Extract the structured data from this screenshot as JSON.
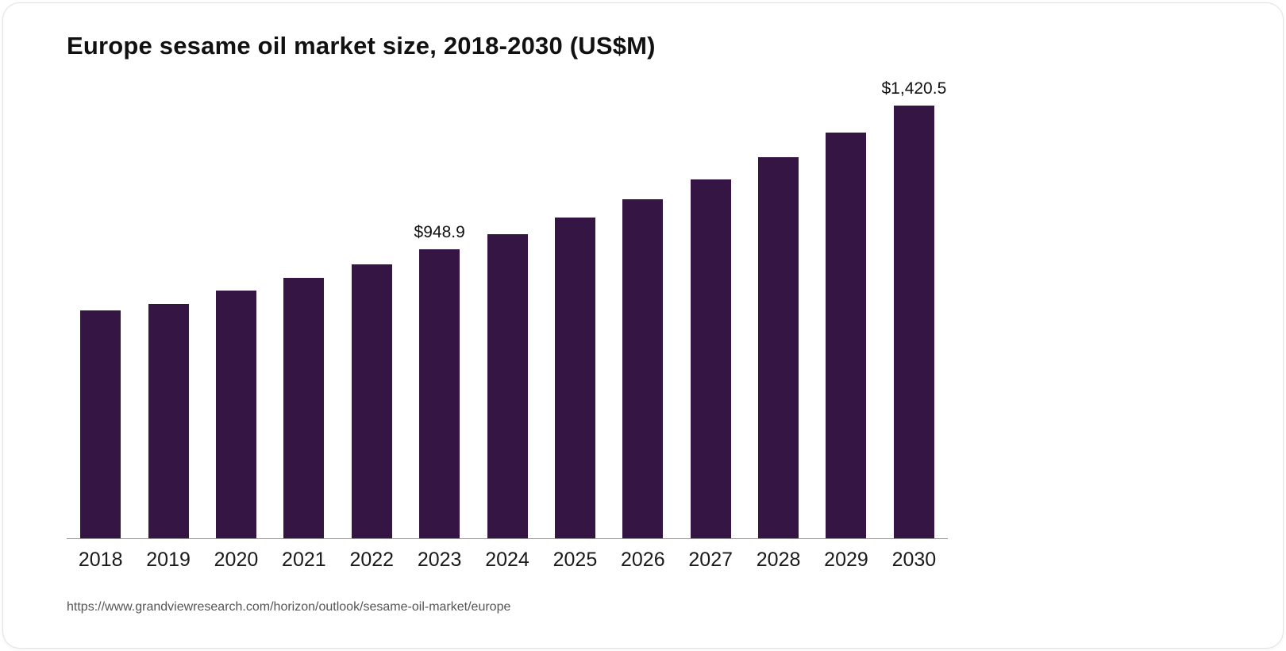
{
  "chart_data": {
    "type": "bar",
    "title": "Europe sesame oil market size, 2018-2030 (US$M)",
    "categories": [
      "2018",
      "2019",
      "2020",
      "2021",
      "2022",
      "2023",
      "2024",
      "2025",
      "2026",
      "2027",
      "2028",
      "2029",
      "2030"
    ],
    "values": [
      749.0,
      770.0,
      814.0,
      856.0,
      900.0,
      948.9,
      999.0,
      1054.0,
      1114.0,
      1179.0,
      1252.0,
      1331.0,
      1420.5
    ],
    "data_labels": {
      "2023": "$948.9",
      "2030": "$1,420.5"
    },
    "xlabel": "",
    "ylabel": "",
    "ylim": [
      0,
      1420.5
    ],
    "grid": false,
    "legend": false,
    "bar_color": "#351543",
    "axis_line_color": "#9a9a9a"
  },
  "source": {
    "url_text": "https://www.grandviewresearch.com/horizon/outlook/sesame-oil-market/europe"
  }
}
